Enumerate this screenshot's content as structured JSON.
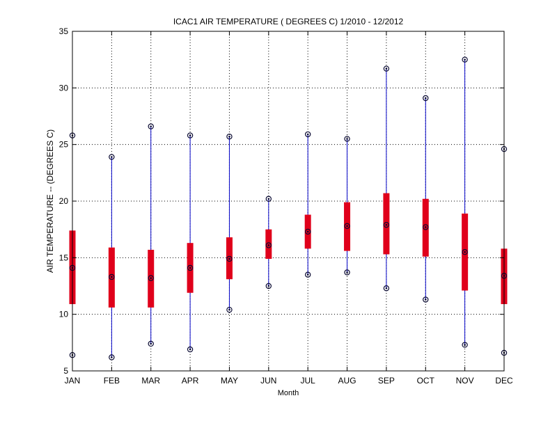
{
  "chart_data": {
    "type": "boxplot",
    "title": "ICAC1  AIR TEMPERATURE ( DEGREES C) 1/2010 - 12/2012",
    "xlabel": "Month",
    "ylabel": "AIR TEMPERATURE -- (DEGREES C)",
    "ylim": [
      5,
      35
    ],
    "yticks": [
      5,
      10,
      15,
      20,
      25,
      30,
      35
    ],
    "grid": true,
    "categories": [
      "JAN",
      "FEB",
      "MAR",
      "APR",
      "MAY",
      "JUN",
      "JUL",
      "AUG",
      "SEP",
      "OCT",
      "NOV",
      "DEC"
    ],
    "min": [
      6.4,
      6.2,
      7.4,
      6.9,
      10.4,
      12.5,
      13.5,
      13.7,
      12.3,
      11.3,
      7.3,
      6.6
    ],
    "q1": [
      10.9,
      10.6,
      10.6,
      11.9,
      13.1,
      14.9,
      15.8,
      15.6,
      15.3,
      15.1,
      12.1,
      10.9
    ],
    "median": [
      14.1,
      13.3,
      13.2,
      14.1,
      14.9,
      16.1,
      17.3,
      17.8,
      17.9,
      17.7,
      15.5,
      13.4
    ],
    "q3": [
      17.4,
      15.9,
      15.7,
      16.3,
      16.8,
      17.5,
      18.8,
      19.9,
      20.7,
      20.2,
      18.9,
      15.8
    ],
    "max": [
      25.8,
      23.9,
      26.6,
      25.8,
      25.7,
      20.2,
      25.9,
      25.5,
      31.7,
      29.1,
      32.5,
      24.6
    ],
    "colors": {
      "whisker": "#0000c8",
      "box": "#e0001b",
      "marker": "#0a0a32",
      "grid": "#000000"
    }
  }
}
